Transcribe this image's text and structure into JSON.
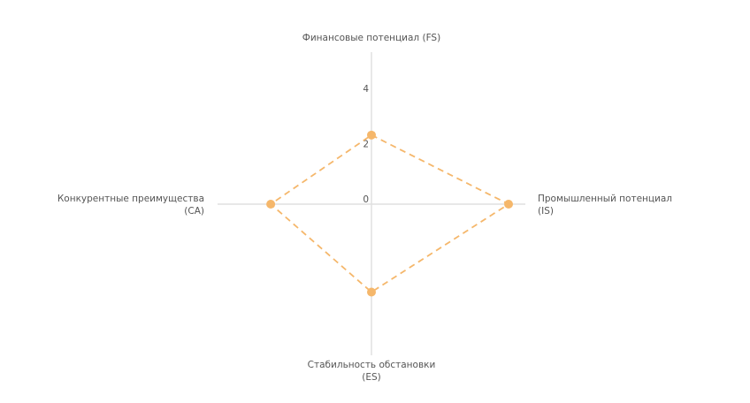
{
  "chart_data": {
    "type": "quadrant-diamond",
    "title": "",
    "axes": [
      {
        "key": "FS",
        "direction": "up",
        "label_lines": [
          "Финансовые потенциал (FS)"
        ],
        "value": 2.5
      },
      {
        "key": "IS",
        "direction": "right",
        "label_lines": [
          "Промышленный потенциал",
          "(IS)"
        ],
        "value": 4.9
      },
      {
        "key": "ES",
        "direction": "down",
        "label_lines": [
          "Стабильность обстановки",
          "(ES)"
        ],
        "value": 3.2
      },
      {
        "key": "CA",
        "direction": "left",
        "label_lines": [
          "Конкурентные преимущества",
          "(CA)"
        ],
        "value": 3.6
      }
    ],
    "ticks": [
      {
        "value": 0,
        "label": "0"
      },
      {
        "value": 2,
        "label": "2"
      },
      {
        "value": 4,
        "label": "4"
      }
    ],
    "range": [
      0,
      5.5
    ],
    "series_color": "#f5b76b",
    "grid": false,
    "legend": "none"
  }
}
